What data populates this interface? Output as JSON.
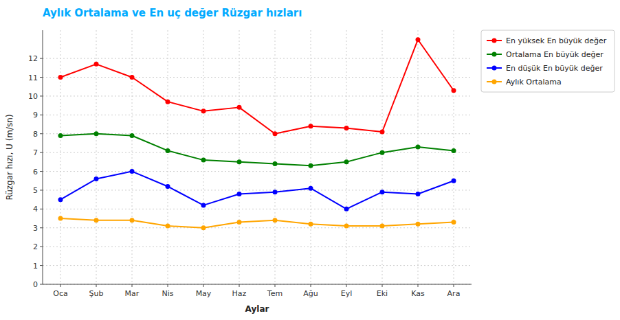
{
  "chart_data": {
    "type": "line",
    "title": "Aylık Ortalama ve En uç değer Rüzgar hızları",
    "x_label": "Aylar",
    "y_label": "Rüzgar hızı, U (m/sn)",
    "categories": [
      "Oca",
      "Şub",
      "Mar",
      "Nis",
      "May",
      "Haz",
      "Tem",
      "Ağu",
      "Eyl",
      "Eki",
      "Kas",
      "Ara"
    ],
    "series": [
      {
        "name": "En yüksek En büyük değer",
        "color": "#ff0000",
        "marker": "circle",
        "values": [
          11.0,
          11.7,
          11.0,
          9.7,
          9.2,
          9.4,
          8.0,
          8.4,
          8.3,
          8.1,
          13.0,
          10.3
        ]
      },
      {
        "name": "Ortalama En büyük değer",
        "color": "#008000",
        "marker": "circle",
        "values": [
          7.9,
          8.0,
          7.9,
          7.1,
          6.6,
          6.5,
          6.4,
          6.3,
          6.5,
          7.0,
          7.3,
          7.1
        ]
      },
      {
        "name": "En düşük En büyük değer",
        "color": "#0000ff",
        "marker": "circle",
        "values": [
          4.5,
          5.6,
          6.0,
          5.2,
          4.2,
          4.8,
          4.9,
          5.1,
          4.0,
          4.9,
          4.8,
          5.5
        ]
      },
      {
        "name": "Aylık Ortalama",
        "color": "#ffa500",
        "marker": "circle",
        "values": [
          3.5,
          3.4,
          3.4,
          3.1,
          3.0,
          3.3,
          3.4,
          3.2,
          3.1,
          3.1,
          3.2,
          3.3
        ]
      }
    ],
    "ylim": [
      0,
      13.5
    ],
    "yticks": [
      0,
      1,
      2,
      3,
      4,
      5,
      6,
      7,
      8,
      9,
      10,
      11,
      12
    ],
    "grid": true,
    "legend": "right"
  }
}
